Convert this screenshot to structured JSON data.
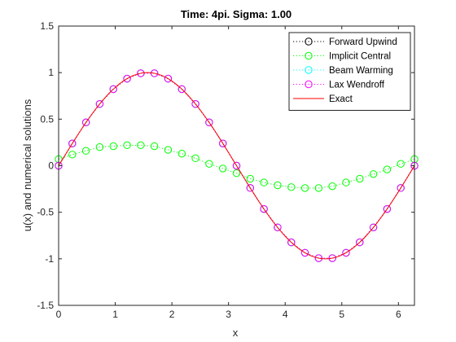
{
  "chart_data": {
    "type": "line",
    "title": "Time: 4pi. Sigma: 1.00",
    "xlabel": "x",
    "ylabel": "u(x) and numerical solutions",
    "xlim": [
      0,
      6.2832
    ],
    "ylim": [
      -1.5,
      1.5
    ],
    "x_ticks": [
      0,
      1,
      2,
      3,
      4,
      5,
      6
    ],
    "y_ticks": [
      -1.5,
      -1,
      -0.5,
      0,
      0.5,
      1,
      1.5
    ],
    "x_tick_labels": [
      "0",
      "1",
      "2",
      "3",
      "4",
      "5",
      "6"
    ],
    "y_tick_labels": [
      "-1.5",
      "-1",
      "-0.5",
      "0",
      "0.5",
      "1",
      "1.5"
    ],
    "grid": false,
    "legend_position": "top-right",
    "x": [
      0,
      0.2414,
      0.4833,
      0.7249,
      0.9666,
      1.2083,
      1.4499,
      1.6916,
      1.9333,
      2.1749,
      2.4166,
      2.6582,
      2.8999,
      3.1416,
      3.3833,
      3.6249,
      3.8666,
      4.1082,
      4.3499,
      4.5916,
      4.8332,
      5.0749,
      5.3166,
      5.5582,
      5.7999,
      6.0415,
      6.2832
    ],
    "series": [
      {
        "name": "Forward Upwind",
        "color": "#000000",
        "line_style": "dotted",
        "marker": "circle",
        "values": [
          0,
          0.239,
          0.465,
          0.663,
          0.823,
          0.935,
          0.993,
          0.993,
          0.935,
          0.823,
          0.663,
          0.465,
          0.239,
          0,
          -0.239,
          -0.465,
          -0.663,
          -0.823,
          -0.935,
          -0.993,
          -0.993,
          -0.935,
          -0.823,
          -0.663,
          -0.465,
          -0.239,
          0
        ]
      },
      {
        "name": "Implicit Central",
        "color": "#00ff00",
        "line_style": "dotted",
        "marker": "circle",
        "values": [
          0.07,
          0.12,
          0.16,
          0.2,
          0.21,
          0.22,
          0.22,
          0.21,
          0.17,
          0.13,
          0.08,
          0.02,
          -0.03,
          -0.08,
          -0.14,
          -0.18,
          -0.21,
          -0.23,
          -0.24,
          -0.24,
          -0.22,
          -0.18,
          -0.14,
          -0.09,
          -0.04,
          0.02,
          0.07
        ]
      },
      {
        "name": "Beam Warming",
        "color": "#00ffff",
        "line_style": "dotted",
        "marker": "circle",
        "values": [
          0,
          0.239,
          0.465,
          0.663,
          0.823,
          0.935,
          0.993,
          0.993,
          0.935,
          0.823,
          0.663,
          0.465,
          0.239,
          0,
          -0.239,
          -0.465,
          -0.663,
          -0.823,
          -0.935,
          -0.993,
          -0.993,
          -0.935,
          -0.823,
          -0.663,
          -0.465,
          -0.239,
          0
        ]
      },
      {
        "name": "Lax Wendroff",
        "color": "#ff00ff",
        "line_style": "dotted",
        "marker": "circle",
        "values": [
          0,
          0.239,
          0.465,
          0.663,
          0.823,
          0.935,
          0.993,
          0.993,
          0.935,
          0.823,
          0.663,
          0.465,
          0.239,
          0,
          -0.239,
          -0.465,
          -0.663,
          -0.823,
          -0.935,
          -0.993,
          -0.993,
          -0.935,
          -0.823,
          -0.663,
          -0.465,
          -0.239,
          0
        ]
      },
      {
        "name": "Exact",
        "color": "#ff0000",
        "line_style": "solid",
        "marker": "none",
        "function": "sin(x)"
      }
    ]
  }
}
